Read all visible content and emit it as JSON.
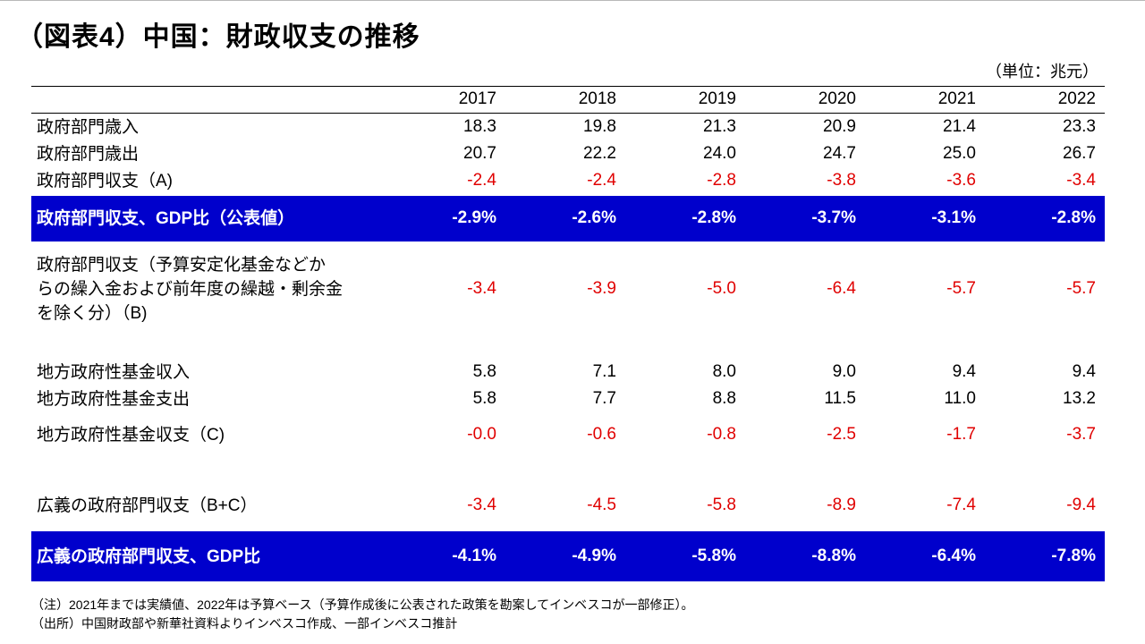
{
  "title": "（図表4）中国：財政収支の推移",
  "unit": "（単位：兆元）",
  "years": [
    "2017",
    "2018",
    "2019",
    "2020",
    "2021",
    "2022"
  ],
  "rows": [
    {
      "label": "政府部門歳入",
      "values": [
        "18.3",
        "19.8",
        "21.3",
        "20.9",
        "21.4",
        "23.3"
      ]
    },
    {
      "label": "政府部門歳出",
      "values": [
        "20.7",
        "22.2",
        "24.0",
        "24.7",
        "25.0",
        "26.7"
      ]
    },
    {
      "label": "政府部門収支（A)",
      "values": [
        "-2.4",
        "-2.4",
        "-2.8",
        "-3.8",
        "-3.6",
        "-3.4"
      ]
    },
    {
      "label": "政府部門収支、GDP比（公表値）",
      "values": [
        "-2.9%",
        "-2.6%",
        "-2.8%",
        "-3.7%",
        "-3.1%",
        "-2.8%"
      ]
    },
    {
      "label_lines": [
        "政府部門収支（予算安定化基金などか",
        "らの繰入金および前年度の繰越・剰余金",
        "を除く分）（B)"
      ],
      "values": [
        "-3.4",
        "-3.9",
        "-5.0",
        "-6.4",
        "-5.7",
        "-5.7"
      ]
    },
    {
      "label": "地方政府性基金収入",
      "values": [
        "5.8",
        "7.1",
        "8.0",
        "9.0",
        "9.4",
        "9.4"
      ]
    },
    {
      "label": "地方政府性基金支出",
      "values": [
        "5.8",
        "7.7",
        "8.8",
        "11.5",
        "11.0",
        "13.2"
      ]
    },
    {
      "label": "地方政府性基金収支（C)",
      "values": [
        "-0.0",
        "-0.6",
        "-0.8",
        "-2.5",
        "-1.7",
        "-3.7"
      ]
    },
    {
      "label": "広義の政府部門収支（B+C）",
      "values": [
        "-3.4",
        "-4.5",
        "-5.8",
        "-8.9",
        "-7.4",
        "-9.4"
      ]
    },
    {
      "label": "広義の政府部門収支、GDP比",
      "values": [
        "-4.1%",
        "-4.9%",
        "-5.8%",
        "-8.8%",
        "-6.4%",
        "-7.8%"
      ]
    }
  ],
  "notes": [
    "（注）2021年までは実績値、2022年は予算ベース（予算作成後に公表された政策を勘案してインベスコが一部修正）。",
    "（出所）中国財政部や新華社資料よりインベスコ作成、一部インベスコ推計"
  ],
  "colors": {
    "band": "#0000cc",
    "negative": "#e00000"
  }
}
